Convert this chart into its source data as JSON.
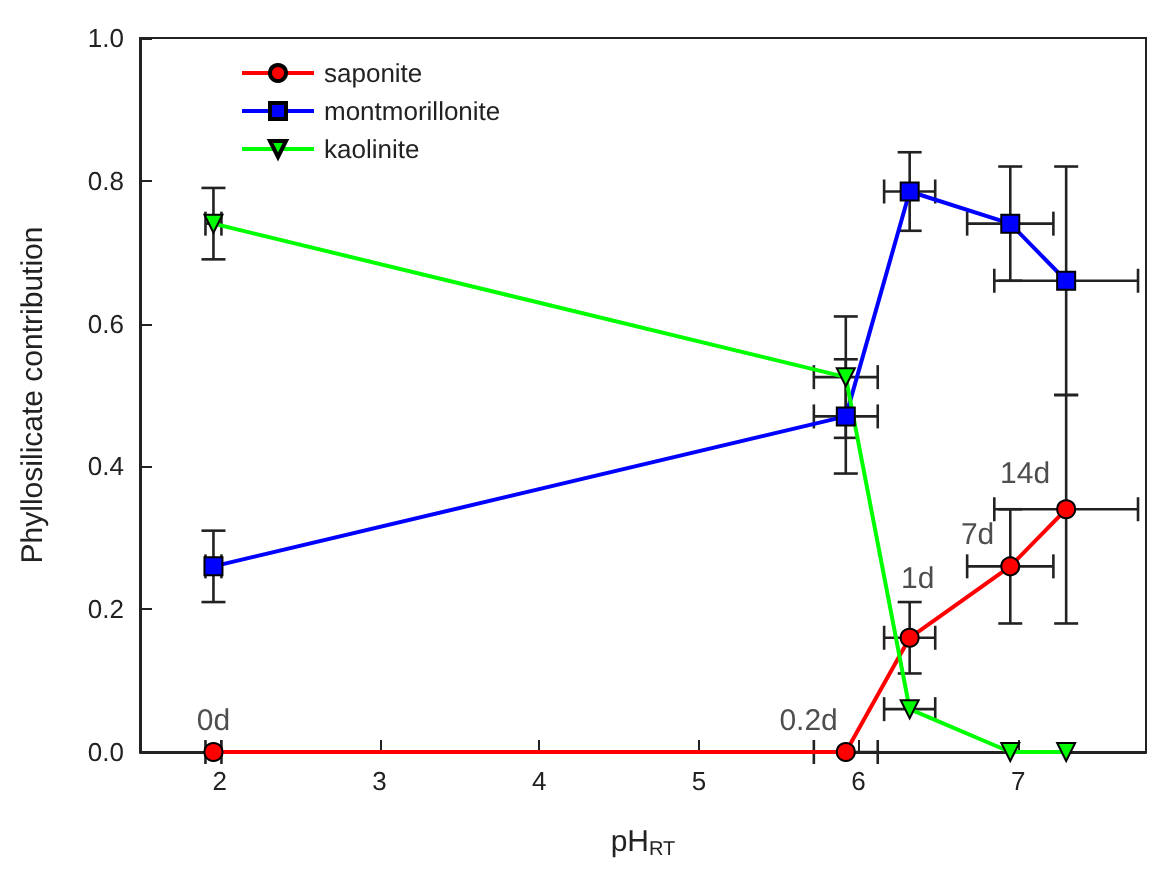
{
  "chart_data": {
    "type": "line",
    "xlabel": "pH$_{RT}$",
    "ylabel": "Phyllosilicate contribution",
    "x": [
      1.96,
      5.92,
      6.32,
      6.95,
      7.3
    ],
    "series": [
      {
        "name": "saponite",
        "color": "#ff0000",
        "marker": "circle",
        "values": [
          0,
          0,
          0.16,
          0.26,
          0.34
        ],
        "errors": [
          null,
          null,
          0.05,
          0.08,
          0.16
        ],
        "xerrors": [
          0.05,
          0.2,
          0.16,
          0.27,
          0.45
        ]
      },
      {
        "name": "montmorillonite",
        "color": "#0000ff",
        "marker": "square",
        "values": [
          0.26,
          0.47,
          0.785,
          0.74,
          0.66
        ],
        "errors": [
          0.05,
          0.08,
          0.055,
          0.08,
          0.16
        ],
        "xerrors": [
          0.05,
          0.2,
          0.16,
          0.27,
          0.45
        ]
      },
      {
        "name": "kaolinite",
        "color": "#00ff00",
        "marker": "triangle",
        "values": [
          0.74,
          0.525,
          0.06,
          0,
          0
        ],
        "errors": [
          0.05,
          0.085,
          null,
          null,
          null
        ],
        "xerrors": [
          0.05,
          0.2,
          0.16,
          null,
          null
        ]
      }
    ],
    "annotations": [
      {
        "text": "0d",
        "x": 1.96,
        "y": 0
      },
      {
        "text": "0.2d",
        "x": 5.92,
        "y": 0
      },
      {
        "text": "1d",
        "x": 6.32,
        "y": 0.16
      },
      {
        "text": "7d",
        "x": 6.95,
        "y": 0.26
      },
      {
        "text": "14d",
        "x": 7.3,
        "y": 0.34
      }
    ],
    "xlim": [
      1.5,
      7.8
    ],
    "xticks": [
      2,
      3,
      4,
      5,
      6,
      7
    ],
    "ylim": [
      0,
      1
    ],
    "yticks": [
      {
        "value": 0,
        "label": "0.0"
      },
      {
        "value": 0.2,
        "label": "0.2"
      },
      {
        "value": 0.4,
        "label": "0.4"
      },
      {
        "value": 0.6,
        "label": "0.6"
      },
      {
        "value": 0.8,
        "label": "0.8"
      },
      {
        "value": 1,
        "label": "1.0"
      }
    ],
    "grid": false,
    "legend": "top left"
  }
}
